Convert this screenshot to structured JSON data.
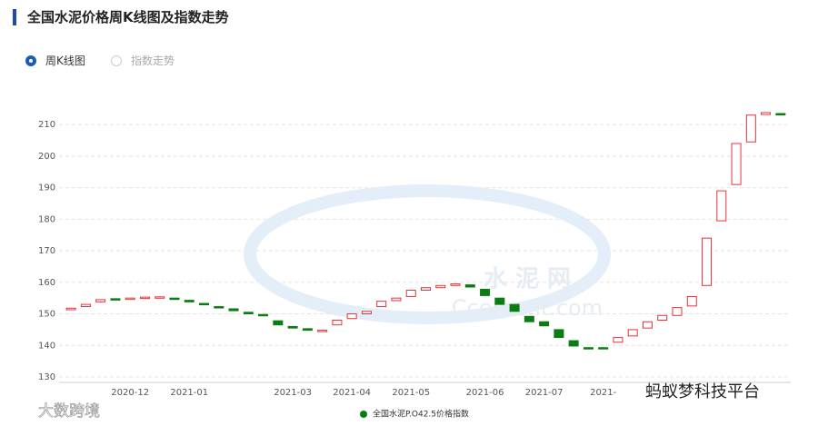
{
  "header": {
    "title": "全国水泥价格周K线图及指数走势"
  },
  "tabs": [
    {
      "label": "周K线图",
      "selected": true
    },
    {
      "label": "指数走势",
      "selected": false
    }
  ],
  "watermarks": [
    "水 泥 网",
    "Ccement.com",
    "蚂蚁梦科技平台",
    "大数跨境"
  ],
  "chart_data": {
    "type": "candlestick",
    "categories": [
      null,
      null,
      null,
      null,
      "2020-12",
      null,
      null,
      null,
      "2021-01",
      null,
      null,
      null,
      null,
      null,
      null,
      "2021-03",
      null,
      null,
      null,
      "2021-04",
      null,
      null,
      null,
      "2021-05",
      null,
      null,
      null,
      null,
      "2021-06",
      null,
      null,
      null,
      "2021-07",
      null,
      null,
      null,
      "2021-",
      null,
      null,
      null,
      null,
      null,
      null,
      null,
      null,
      null,
      null,
      null,
      null
    ],
    "series": [
      {
        "name": "全国水泥P.O42.5价格指数",
        "color": "#0a7d12",
        "up_color": "#e8313a",
        "open": [
          151.3,
          152.3,
          153.8,
          154.8,
          154.8,
          155.0,
          155.2,
          155.0,
          154.3,
          153.3,
          152.3,
          151.6,
          150.5,
          149.8,
          147.8,
          146.0,
          145.3,
          144.5,
          146.5,
          148.5,
          150.0,
          152.3,
          154.2,
          155.5,
          157.5,
          158.3,
          159.0,
          159.2,
          157.8,
          155.0,
          153.0,
          149.2,
          147.5,
          145.0,
          141.5,
          139.3,
          139.3,
          141.0,
          143.0,
          145.5,
          148.0,
          149.5,
          152.5,
          159.0,
          179.5,
          191.0,
          204.5,
          213.2,
          213.5
        ],
        "close": [
          151.8,
          153.0,
          154.5,
          154.6,
          155.0,
          155.3,
          155.4,
          154.8,
          153.8,
          153.0,
          152.0,
          151.0,
          150.0,
          149.5,
          146.5,
          145.5,
          144.8,
          144.8,
          148.0,
          150.0,
          150.8,
          154.0,
          155.0,
          157.5,
          158.3,
          159.0,
          159.5,
          158.5,
          155.8,
          153.0,
          150.8,
          147.5,
          146.2,
          142.5,
          139.8,
          139.1,
          139.1,
          142.5,
          145.0,
          147.5,
          149.5,
          152.0,
          155.5,
          174.0,
          189.0,
          204.0,
          213.0,
          213.8,
          213.2
        ]
      }
    ],
    "ylim": [
      130,
      213.5
    ],
    "yticks": [
      130,
      140,
      150,
      160,
      170,
      180,
      190,
      200,
      210
    ],
    "grid": true
  }
}
